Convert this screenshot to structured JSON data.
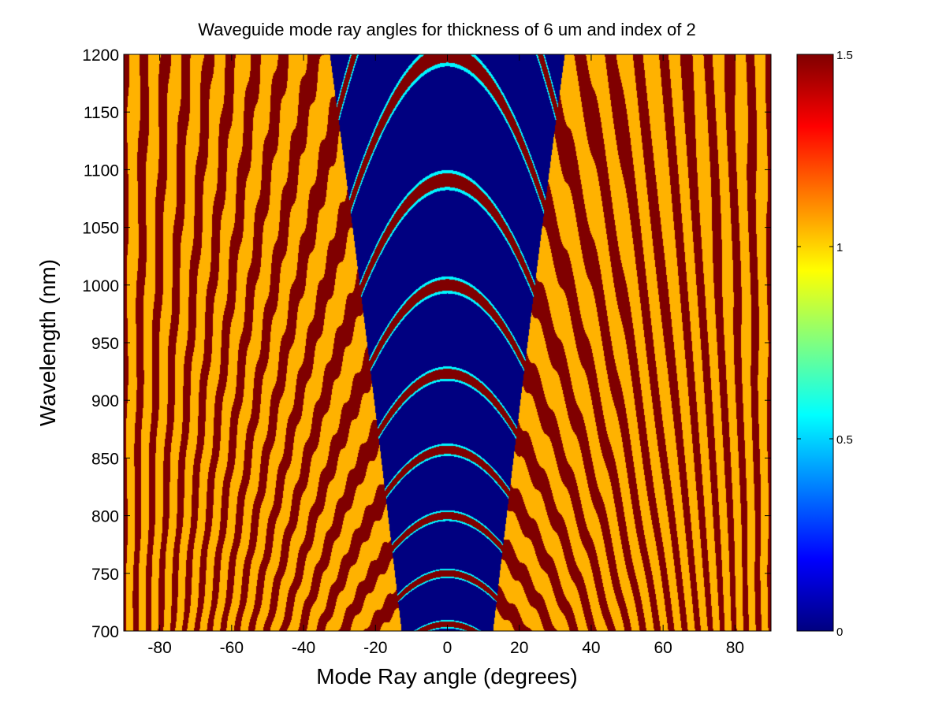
{
  "chart_data": {
    "type": "heatmap",
    "title": "Waveguide mode ray angles for thickness of 6 um and index of 2",
    "xlabel": "Mode Ray angle (degrees)",
    "ylabel": "Wavelength (nm)",
    "xlim": [
      -90,
      90
    ],
    "ylim": [
      700,
      1200
    ],
    "x_ticks": [
      -80,
      -60,
      -40,
      -20,
      0,
      20,
      40,
      60,
      80
    ],
    "y_ticks": [
      700,
      750,
      800,
      850,
      900,
      950,
      1000,
      1050,
      1100,
      1150,
      1200
    ],
    "colorbar": {
      "colormap": "jet",
      "clim": [
        0,
        1.5
      ],
      "ticks": [
        0,
        0.5,
        1,
        1.5
      ],
      "tick_labels": [
        "0",
        "0.5",
        "1",
        "1.5"
      ]
    },
    "values_range": [
      0,
      1.5
    ],
    "parameters": {
      "thickness_um": 6,
      "index": 2
    },
    "grid": false,
    "colors": {
      "low": "#00008f",
      "mid_yellow": "#ffc800",
      "high": "#800000",
      "cyan": "#00ffff"
    }
  }
}
